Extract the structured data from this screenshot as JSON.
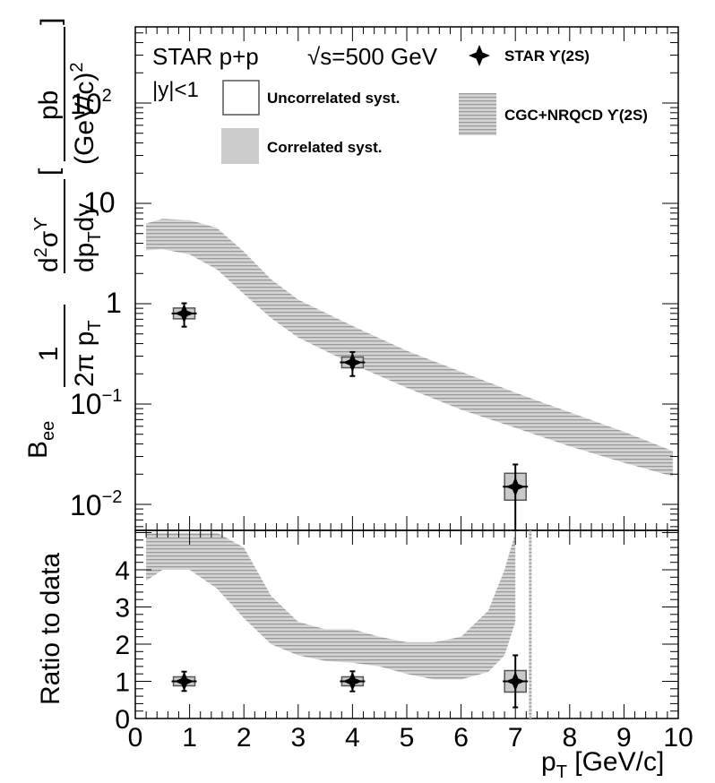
{
  "chart_data": [
    {
      "type": "scatter",
      "panel": "upper",
      "scale": "log",
      "ylim": [
        0.005,
        500
      ],
      "xlim": [
        0,
        10
      ],
      "y_ticks": [
        "10^{2}",
        "10",
        "1",
        "10^{-1}",
        "10^{-2}"
      ],
      "annotations": {
        "experiment": "STAR p+p",
        "energy": "√s=500 GeV",
        "rapidity": "|y|<1"
      },
      "legend": {
        "data": "STAR  ϒ(2S)",
        "uncorrelated": "Uncorrelated syst.",
        "correlated": "Correlated syst.",
        "model": "CGC+NRQCD  ϒ(2S)"
      },
      "series": [
        {
          "name": "STAR ϒ(2S)",
          "x": [
            0.9,
            4.0,
            7.0
          ],
          "y": [
            0.8,
            0.26,
            0.015
          ],
          "y_err_low": [
            0.21,
            0.07,
            0.015
          ],
          "y_err_high": [
            0.21,
            0.07,
            0.01
          ]
        },
        {
          "name": "CGC+NRQCD ϒ(2S)",
          "x": [
            0.2,
            0.5,
            1.0,
            1.5,
            2.0,
            2.5,
            3.0,
            4.0,
            5.0,
            6.0,
            7.0,
            8.0,
            9.0,
            9.9
          ],
          "y_low": [
            3.4,
            3.5,
            3.1,
            2.2,
            1.25,
            0.72,
            0.46,
            0.25,
            0.145,
            0.088,
            0.058,
            0.038,
            0.026,
            0.019
          ],
          "y_high": [
            6.3,
            7.0,
            6.8,
            5.7,
            3.3,
            1.75,
            1.1,
            0.6,
            0.34,
            0.21,
            0.13,
            0.083,
            0.053,
            0.034
          ]
        }
      ]
    },
    {
      "type": "scatter",
      "panel": "lower",
      "ylabel": "Ratio to data",
      "xlabel": "p_{T} [GeV/c]",
      "xlim": [
        0,
        10
      ],
      "ylim": [
        0,
        5
      ],
      "x_ticks": [
        "0",
        "1",
        "2",
        "3",
        "4",
        "5",
        "6",
        "7",
        "8",
        "9",
        "10"
      ],
      "y_ticks": [
        "0",
        "1",
        "2",
        "3",
        "4"
      ],
      "series": [
        {
          "name": "STAR ϒ(2S)",
          "x": [
            0.9,
            4.0,
            7.0
          ],
          "y": [
            1.0,
            1.0,
            1.0
          ],
          "y_err": [
            0.26,
            0.27,
            0.7
          ]
        },
        {
          "name": "CGC+NRQCD ϒ(2S)",
          "x": [
            0.2,
            0.5,
            1.0,
            1.5,
            2.0,
            2.5,
            3.0,
            3.5,
            4.0,
            4.5,
            5.0,
            5.5,
            6.0,
            6.5,
            6.8,
            7.0
          ],
          "y_low": [
            3.7,
            4.0,
            4.0,
            3.5,
            2.7,
            2.0,
            1.7,
            1.55,
            1.5,
            1.4,
            1.2,
            1.05,
            1.05,
            1.25,
            1.7,
            2.6
          ],
          "y_high": [
            5.0,
            5.0,
            5.0,
            5.0,
            4.6,
            3.3,
            2.6,
            2.4,
            2.4,
            2.2,
            2.05,
            2.05,
            2.2,
            2.9,
            4.0,
            5.0
          ]
        }
      ],
      "extra_band_x": [
        7.25,
        7.3
      ]
    }
  ]
}
